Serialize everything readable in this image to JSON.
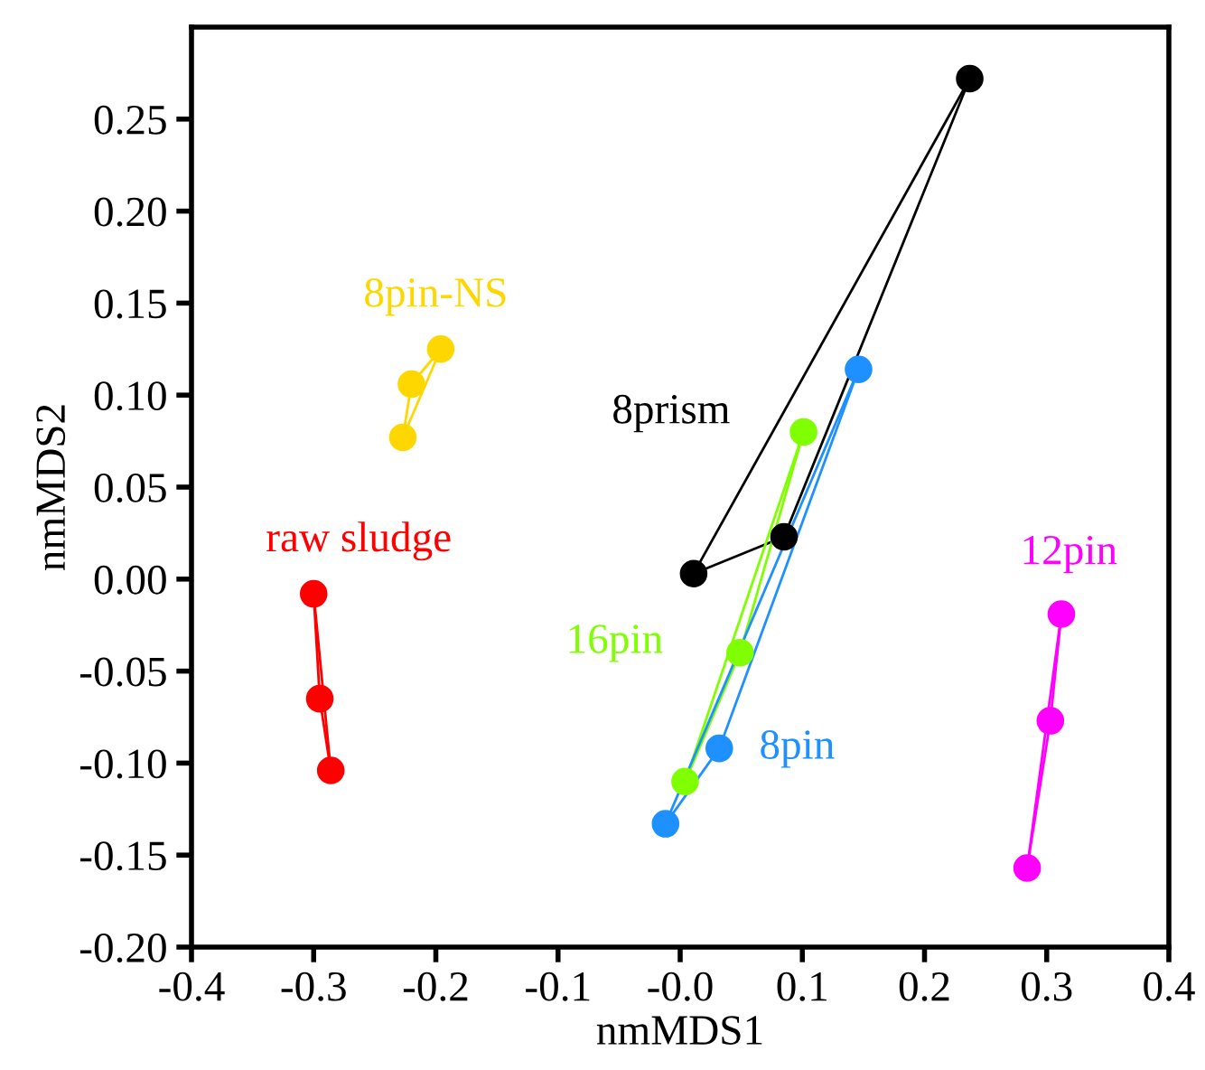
{
  "chart_data": {
    "type": "scatter",
    "xlabel": "nmMDS1",
    "ylabel": "nmMDS2",
    "marker": "circle",
    "line_style": "solid",
    "grid": false,
    "xlim": [
      -0.4,
      0.4
    ],
    "ylim": [
      -0.2,
      0.3
    ],
    "xticks": [
      -0.4,
      -0.3,
      -0.2,
      -0.1,
      {
        "value": 0,
        "label": "-0.0"
      },
      0.1,
      0.2,
      0.3,
      0.4
    ],
    "yticks": [
      {
        "value": -0.2,
        "label": "-0.20"
      },
      {
        "value": -0.15,
        "label": "-0.15"
      },
      {
        "value": -0.1,
        "label": "-0.10"
      },
      {
        "value": -0.05,
        "label": "-0.05"
      },
      {
        "value": 0,
        "label": "0.00"
      },
      {
        "value": 0.05,
        "label": "0.05"
      },
      {
        "value": 0.1,
        "label": "0.10"
      },
      {
        "value": 0.15,
        "label": "0.15"
      },
      {
        "value": 0.2,
        "label": "0.20"
      },
      {
        "value": 0.25,
        "label": "0.25"
      }
    ],
    "series": [
      {
        "name": "raw sludge",
        "color": "#ff0000",
        "x": [
          -0.3,
          -0.295,
          -0.286
        ],
        "values": [
          -0.008,
          -0.065,
          -0.104
        ]
      },
      {
        "name": "8pin-NS",
        "color": "#ffd700",
        "x": [
          -0.227,
          -0.22,
          -0.196
        ],
        "values": [
          0.077,
          0.106,
          0.125
        ]
      },
      {
        "name": "8prism",
        "color": "#000000",
        "x": [
          0.237,
          0.085,
          0.011
        ],
        "values": [
          0.272,
          0.023,
          0.003
        ]
      },
      {
        "name": "16pin",
        "color": "#7fff00",
        "x": [
          0.101,
          0.049,
          0.004
        ],
        "values": [
          0.08,
          -0.04,
          -0.11
        ]
      },
      {
        "name": "8pin",
        "color": "#1e90ff",
        "x": [
          0.146,
          0.032,
          -0.012
        ],
        "values": [
          0.114,
          -0.092,
          -0.133
        ]
      },
      {
        "name": "12pin",
        "color": "#ff00ff",
        "x": [
          0.312,
          0.303,
          0.284
        ],
        "values": [
          -0.019,
          -0.077,
          -0.157
        ]
      },
      {
        "type": "line",
        "marker": "none",
        "color": "#ff0000",
        "x": [
          -0.3,
          -0.286
        ],
        "values": [
          -0.008,
          -0.104
        ]
      },
      {
        "type": "line",
        "marker": "none",
        "color": "#ffd700",
        "x": [
          -0.227,
          -0.196
        ],
        "values": [
          0.077,
          0.125
        ]
      },
      {
        "type": "line",
        "marker": "none",
        "color": "#000000",
        "x": [
          0.011,
          0.237
        ],
        "values": [
          0.003,
          0.272
        ]
      },
      {
        "type": "line",
        "marker": "none",
        "color": "#7fff00",
        "x": [
          0.004,
          0.101
        ],
        "values": [
          -0.11,
          0.08
        ]
      },
      {
        "type": "line",
        "marker": "none",
        "color": "#1e90ff",
        "x": [
          -0.012,
          0.146
        ],
        "values": [
          -0.133,
          0.114
        ]
      },
      {
        "type": "line",
        "marker": "none",
        "color": "#ff00ff",
        "x": [
          0.284,
          0.312
        ],
        "values": [
          -0.157,
          -0.019
        ]
      }
    ]
  }
}
